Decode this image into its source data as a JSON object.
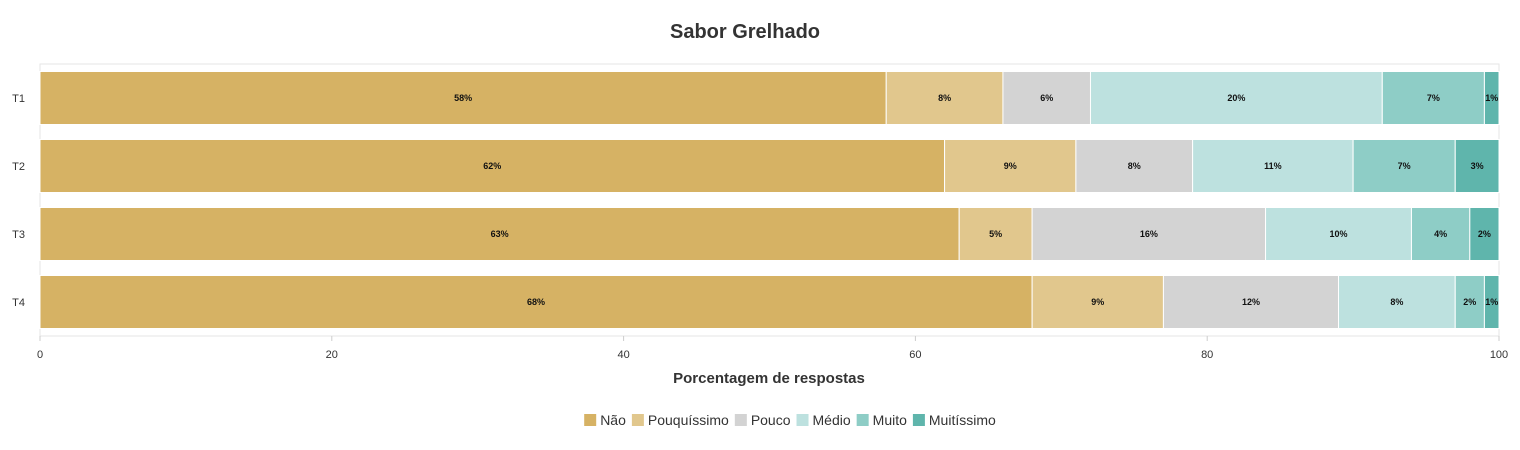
{
  "chart_data": {
    "type": "bar",
    "orientation": "horizontal",
    "stacked": true,
    "title": "Sabor Grelhado",
    "xlabel": "Porcentagem de respostas",
    "ylabel": "",
    "xlim": [
      0,
      100
    ],
    "xticks": [
      0,
      20,
      40,
      60,
      80,
      100
    ],
    "categories": [
      "T1",
      "T2",
      "T3",
      "T4"
    ],
    "value_suffix": "%",
    "legend_position": "bottom",
    "series": [
      {
        "name": "Não",
        "color": "#D6B264",
        "values": [
          58,
          62,
          63,
          68
        ]
      },
      {
        "name": "Pouquíssimo",
        "color": "#E1C78D",
        "values": [
          8,
          9,
          5,
          9
        ]
      },
      {
        "name": "Pouco",
        "color": "#D3D3D3",
        "values": [
          6,
          8,
          16,
          12
        ]
      },
      {
        "name": "Médio",
        "color": "#BDE1DF",
        "values": [
          20,
          11,
          10,
          8
        ]
      },
      {
        "name": "Muito",
        "color": "#8ECDC6",
        "values": [
          7,
          7,
          4,
          2
        ]
      },
      {
        "name": "Muitíssimo",
        "color": "#5FB5AC",
        "values": [
          1,
          3,
          2,
          1
        ]
      }
    ]
  }
}
